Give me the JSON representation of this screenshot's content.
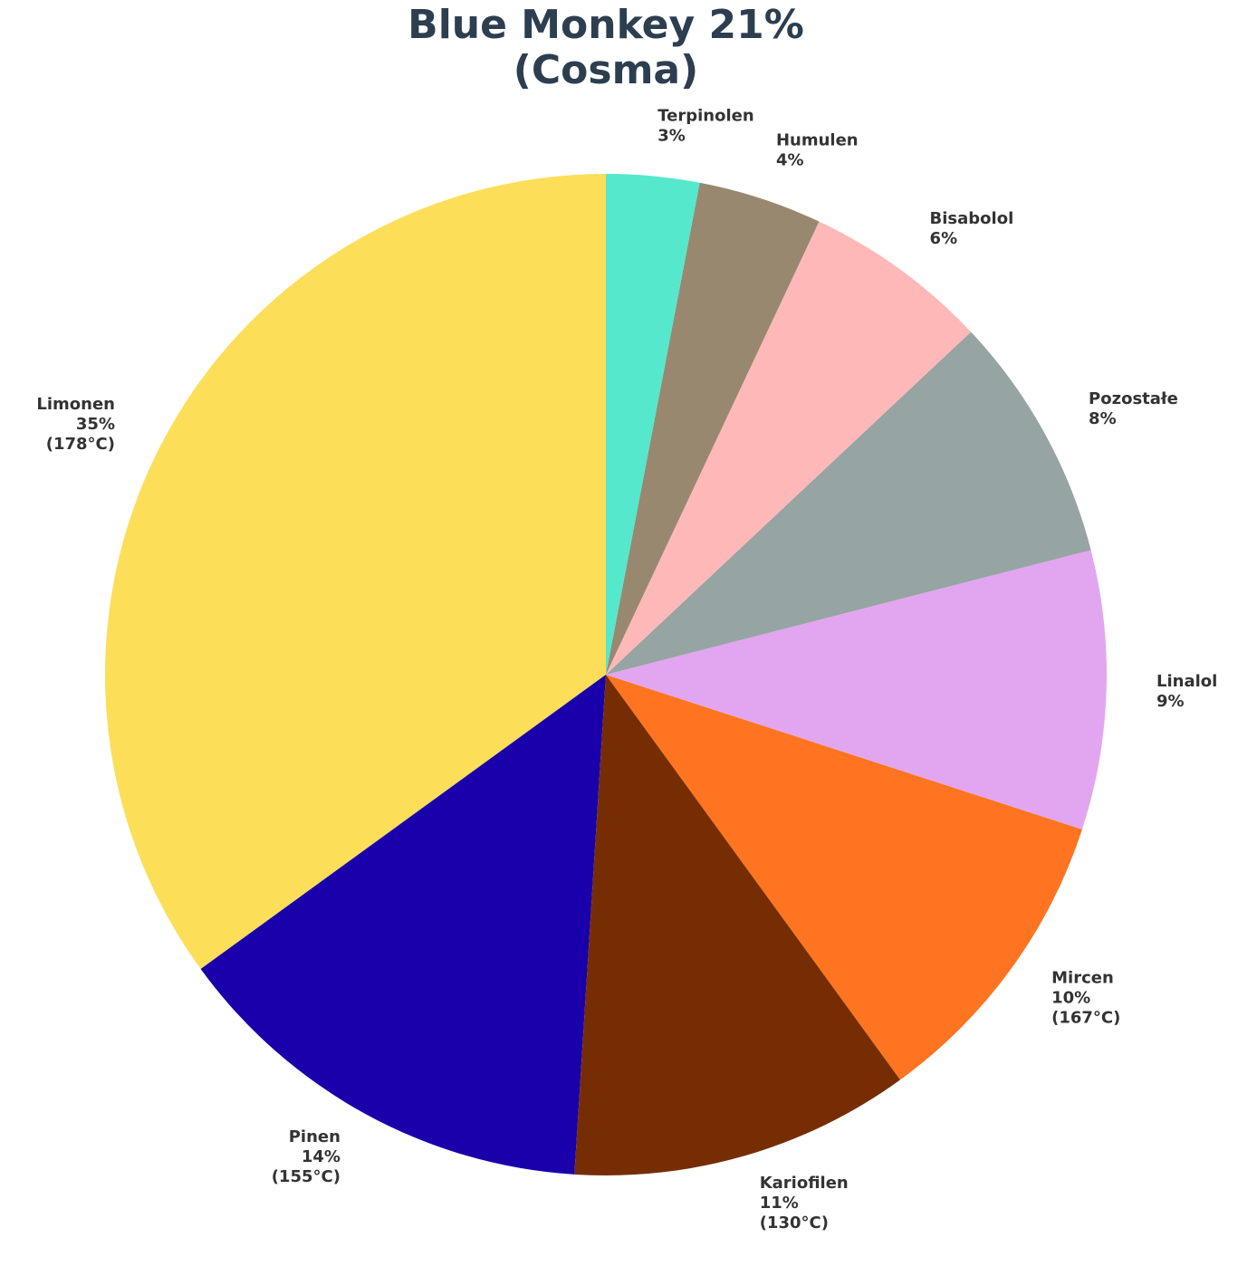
{
  "chart_data": {
    "type": "pie",
    "title_lines": [
      "Blue Monkey 21%",
      "(Cosma)"
    ],
    "categories": [
      "Limonen",
      "Pinen",
      "Kariofilen",
      "Mircen",
      "Linalol",
      "Pozostałe",
      "Bisabolol",
      "Humulen",
      "Terpinolen"
    ],
    "values": [
      35,
      14,
      11,
      10,
      9,
      8,
      6,
      4,
      3
    ],
    "value_labels": [
      "35%",
      "14%",
      "11%",
      "10%",
      "9%",
      "8%",
      "6%",
      "4%",
      "3%"
    ],
    "temperatures": [
      "(178°C)",
      "(155°C)",
      "(130°C)",
      "(167°C)",
      null,
      null,
      null,
      null,
      null
    ],
    "colors": [
      "#fdde59",
      "#1900ab",
      "#772d03",
      "#ff7420",
      "#e1a6ef",
      "#96a4a3",
      "#ffb8b8",
      "#998870",
      "#55e8cd"
    ],
    "start_angle": 90,
    "direction": "counterclockwise"
  }
}
